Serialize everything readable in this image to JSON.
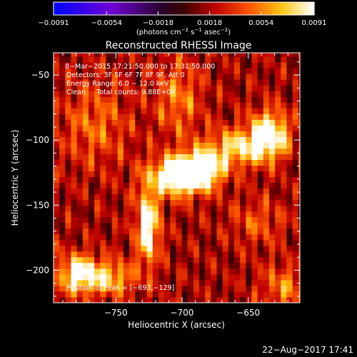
{
  "chart_data": {
    "type": "heatmap",
    "title": "Reconstructed RHESSI Image",
    "xlabel": "Heliocentric X (arcsec)",
    "ylabel": "Heliocentric Y (arcsec)",
    "xlim": [
      -797,
      -611
    ],
    "ylim": [
      -225,
      -33
    ],
    "x_ticks": [
      -750,
      -700,
      -650
    ],
    "x_tick_labels": [
      "−750",
      "−700",
      "−650"
    ],
    "y_ticks": [
      -50,
      -100,
      -150,
      -200
    ],
    "y_tick_labels": [
      "−50",
      "−100",
      "−150",
      "−200"
    ],
    "colorbar": {
      "range": [
        -0.0091,
        0.0091
      ],
      "ticks": [
        -0.0091,
        -0.0054,
        -0.0018,
        0.0018,
        0.0054,
        0.0091
      ],
      "tick_labels": [
        "−0.0091",
        "−0.0054",
        "−0.0018",
        "0.0018",
        "0.0054",
        "0.0091"
      ],
      "label_main": "(photons cm",
      "label_sup1": "−2",
      "label_mid": " s",
      "label_sup2": "−1",
      "label_mid2": " asec",
      "label_sup3": "−2",
      "label_end": ")",
      "colormap": "rhessi-hot"
    },
    "info_lines": [
      "8−Mar−2015 17:21:50.000 to 17:31:50.000",
      "Detectors: 3F 5F 6F 7F 8F 9F, Att 0",
      "Energy Range: 6.0 − 12.0 keV",
      "Clean     Total counts: 9.88E+04"
    ],
    "peak_label": "Position of Peak = [−693,−129]",
    "peak": [
      -693,
      -129
    ],
    "sources": [
      {
        "x": -705,
        "y": -130,
        "sx": 15,
        "sy": 10,
        "amp": 0.0089
      },
      {
        "x": -690,
        "y": -125,
        "sx": 12,
        "sy": 9,
        "amp": 0.009
      },
      {
        "x": -728,
        "y": -168,
        "sx": 6,
        "sy": 20,
        "amp": 0.008
      },
      {
        "x": -636,
        "y": -97,
        "sx": 10,
        "sy": 12,
        "amp": 0.0082
      },
      {
        "x": -660,
        "y": -108,
        "sx": 18,
        "sy": 10,
        "amp": 0.006
      },
      {
        "x": -780,
        "y": -205,
        "sx": 11,
        "sy": 10,
        "amp": 0.0078
      },
      {
        "x": -755,
        "y": -208,
        "sx": 12,
        "sy": 9,
        "amp": 0.005
      },
      {
        "x": -705,
        "y": -70,
        "sx": 12,
        "sy": 20,
        "amp": 0.0035
      },
      {
        "x": -768,
        "y": -90,
        "sx": 18,
        "sy": 22,
        "amp": 0.003
      },
      {
        "x": -645,
        "y": -165,
        "sx": 14,
        "sy": 12,
        "amp": 0.0025
      },
      {
        "x": -625,
        "y": -215,
        "sx": 12,
        "sy": 12,
        "amp": 0.0035
      }
    ],
    "background_level": 0.0018
  },
  "footer": {
    "timestamp": "22−Aug−2017 17:41"
  }
}
